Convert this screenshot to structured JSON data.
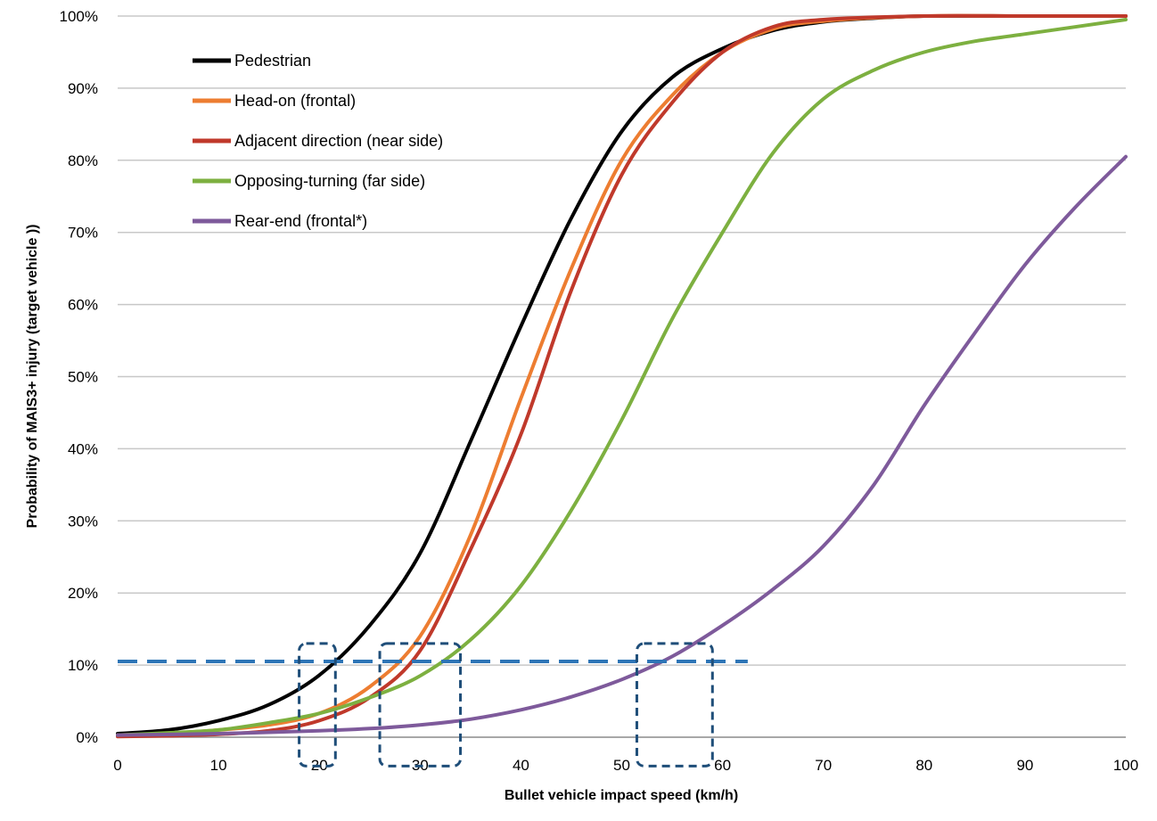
{
  "chart_data": {
    "type": "line",
    "xlabel": "Bullet vehicle impact speed (km/h)",
    "ylabel": "Probability of MAIS3+ injury  (target vehicle ))",
    "xlim": [
      0,
      100
    ],
    "ylim": [
      0,
      100
    ],
    "x_ticks": [
      "0",
      "10",
      "20",
      "30",
      "40",
      "50",
      "60",
      "70",
      "80",
      "90",
      "100"
    ],
    "y_ticks": [
      "0%",
      "10%",
      "20%",
      "30%",
      "40%",
      "50%",
      "60%",
      "70%",
      "80%",
      "90%",
      "100%"
    ],
    "grid": "horizontal",
    "legend_position": "top-left",
    "series": [
      {
        "name": "Pedestrian",
        "color": "#000000",
        "x": [
          0,
          5,
          10,
          15,
          20,
          25,
          30,
          35,
          40,
          45,
          50,
          55,
          60,
          65,
          70,
          75,
          80,
          90,
          100
        ],
        "y": [
          0.5,
          1.0,
          2.3,
          4.5,
          8.6,
          15.5,
          25.5,
          41,
          57,
          72,
          84,
          91.5,
          95.5,
          98,
          99.2,
          99.7,
          100,
          100,
          100
        ]
      },
      {
        "name": "Head-on (frontal)",
        "color": "#ED7D31",
        "x": [
          0,
          5,
          10,
          15,
          20,
          25,
          30,
          35,
          40,
          45,
          50,
          55,
          60,
          65,
          70,
          80,
          90,
          100
        ],
        "y": [
          0.3,
          0.5,
          1.0,
          1.7,
          3.3,
          7,
          14,
          28,
          47,
          65,
          80,
          89,
          95,
          98.2,
          99.3,
          100,
          100,
          100
        ]
      },
      {
        "name": "Adjacent direction (near side)",
        "color": "#C0392B",
        "x": [
          0,
          5,
          10,
          15,
          20,
          25,
          30,
          35,
          40,
          45,
          50,
          55,
          60,
          65,
          70,
          80,
          90,
          100
        ],
        "y": [
          0.1,
          0.2,
          0.4,
          0.9,
          2.3,
          5.5,
          12,
          26,
          42,
          62,
          78,
          88,
          95,
          98.5,
          99.5,
          100,
          100,
          100
        ]
      },
      {
        "name": "Opposing-turning (far side)",
        "color": "#7DB040",
        "x": [
          0,
          5,
          10,
          15,
          20,
          25,
          30,
          35,
          40,
          45,
          50,
          55,
          60,
          65,
          70,
          75,
          80,
          85,
          90,
          100
        ],
        "y": [
          0.3,
          0.6,
          1.0,
          2.0,
          3.3,
          5.5,
          8.5,
          13.5,
          21,
          31.5,
          44,
          58,
          70,
          81,
          88.5,
          92.5,
          95,
          96.5,
          97.5,
          99.5
        ]
      },
      {
        "name": "Rear-end (frontal*)",
        "color": "#7E5A9B",
        "x": [
          0,
          10,
          20,
          25,
          30,
          35,
          40,
          45,
          50,
          55,
          60,
          65,
          70,
          75,
          80,
          85,
          90,
          95,
          100
        ],
        "y": [
          0.3,
          0.5,
          0.9,
          1.2,
          1.7,
          2.5,
          3.8,
          5.6,
          8,
          11.2,
          15.5,
          20.5,
          26.5,
          35,
          46,
          56,
          65.5,
          73.5,
          80.5
        ]
      }
    ],
    "annotations": {
      "threshold_line": {
        "y": 10.5,
        "x_from": 0,
        "x_to": 62.5,
        "color": "#2E75B6"
      },
      "highlight_boxes": [
        {
          "x_from": 18,
          "x_to": 21.6,
          "y_from": -4,
          "y_to": 13
        },
        {
          "x_from": 26,
          "x_to": 34,
          "y_from": -4,
          "y_to": 13
        },
        {
          "x_from": 51.5,
          "x_to": 59,
          "y_from": -4,
          "y_to": 13
        }
      ],
      "box_color": "#1F4E79"
    }
  }
}
